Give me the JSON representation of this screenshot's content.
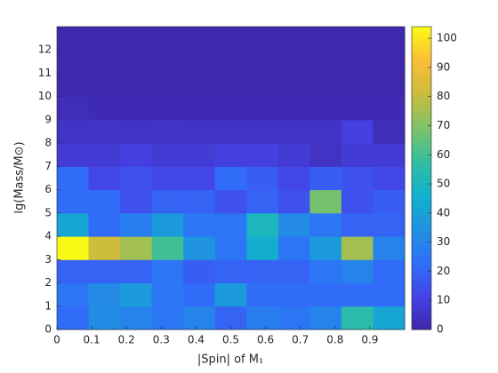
{
  "chart_data": {
    "type": "heatmap",
    "xlabel": "|Spin| of M₁",
    "ylabel": "lg(Mass/M⊙)",
    "xbins": [
      0,
      0.0909,
      0.1818,
      0.2727,
      0.3636,
      0.4545,
      0.5455,
      0.6364,
      0.7273,
      0.8182,
      0.9091,
      1
    ],
    "ybins": [
      0,
      1,
      2,
      3,
      4,
      5,
      6,
      7,
      8,
      9,
      10,
      11,
      12,
      13
    ],
    "values": [
      [
        22,
        33,
        30,
        25,
        30,
        20,
        28,
        25,
        30,
        55,
        42
      ],
      [
        25,
        32,
        38,
        25,
        22,
        38,
        22,
        22,
        22,
        22,
        22
      ],
      [
        20,
        20,
        20,
        25,
        18,
        20,
        20,
        20,
        25,
        30,
        22
      ],
      [
        104,
        82,
        75,
        60,
        35,
        25,
        45,
        25,
        38,
        75,
        30
      ],
      [
        42,
        22,
        28,
        38,
        25,
        25,
        50,
        32,
        25,
        20,
        20
      ],
      [
        22,
        22,
        15,
        20,
        20,
        15,
        20,
        15,
        68,
        15,
        18
      ],
      [
        22,
        12,
        15,
        12,
        12,
        22,
        18,
        12,
        18,
        15,
        12
      ],
      [
        8,
        8,
        10,
        8,
        8,
        10,
        10,
        8,
        5,
        8,
        8
      ],
      [
        5,
        6,
        5,
        6,
        5,
        5,
        5,
        5,
        5,
        10,
        3
      ],
      [
        3,
        2,
        2,
        2,
        2,
        2,
        2,
        2,
        2,
        2,
        2
      ],
      [
        1,
        1,
        1,
        1,
        1,
        1,
        1,
        1,
        1,
        1,
        1
      ],
      [
        1,
        1,
        1,
        1,
        1,
        1,
        1,
        1,
        1,
        1,
        1
      ],
      [
        1,
        1,
        1,
        1,
        1,
        1,
        1,
        1,
        1,
        1,
        1
      ]
    ],
    "xlim": [
      0,
      1
    ],
    "ylim": [
      0,
      13
    ],
    "xticks": [
      0,
      0.1,
      0.2,
      0.3,
      0.4,
      0.5,
      0.6,
      0.7,
      0.8,
      0.9
    ],
    "yticks": [
      0,
      1,
      2,
      3,
      4,
      5,
      6,
      7,
      8,
      9,
      10,
      11,
      12
    ],
    "clim": [
      0,
      104
    ],
    "cticks": [
      0,
      10,
      20,
      30,
      40,
      50,
      60,
      70,
      80,
      90,
      100
    ],
    "colormap": [
      "#3e26a8",
      "#4444e8",
      "#2f70fa",
      "#1f92e0",
      "#12b1cd",
      "#33bea0",
      "#7dc367",
      "#c9bc3d",
      "#fbbd38",
      "#f9fb15"
    ]
  }
}
